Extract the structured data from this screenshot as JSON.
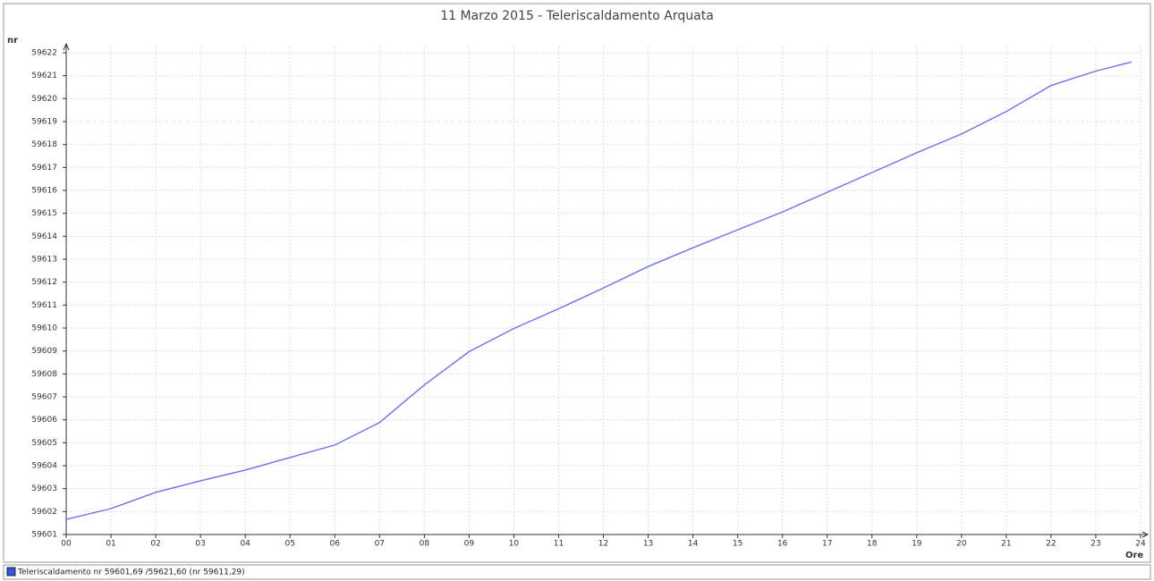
{
  "chart_data": {
    "type": "line",
    "title": "11 Marzo 2015 - Teleriscaldamento Arquata",
    "y_label": "nr",
    "x_label": "Ore",
    "legend_text": "Teleriscaldamento nr 59601,69 /59621,60 (nr 59611,29)",
    "x": [
      0,
      1,
      2,
      3,
      4,
      5,
      6,
      7,
      8,
      9,
      10,
      11,
      12,
      13,
      14,
      15,
      16,
      17,
      18,
      19,
      20,
      21,
      22,
      23,
      23.8
    ],
    "series": [
      {
        "name": "Teleriscaldamento",
        "color": "#6f6ff0",
        "values": [
          59601.66,
          59602.13,
          59602.84,
          59603.34,
          59603.81,
          59604.36,
          59604.9,
          59605.88,
          59607.52,
          59608.97,
          59609.98,
          59610.84,
          59611.74,
          59612.68,
          59613.5,
          59614.28,
          59615.06,
          59615.92,
          59616.78,
          59617.64,
          59618.46,
          59619.44,
          59620.57,
          59621.2,
          59621.6
        ]
      }
    ],
    "xlim": [
      0,
      24
    ],
    "xticks": [
      {
        "value": 0,
        "label": "00"
      },
      {
        "value": 1,
        "label": "01"
      },
      {
        "value": 2,
        "label": "02"
      },
      {
        "value": 3,
        "label": "03"
      },
      {
        "value": 4,
        "label": "04"
      },
      {
        "value": 5,
        "label": "05"
      },
      {
        "value": 6,
        "label": "06"
      },
      {
        "value": 7,
        "label": "07"
      },
      {
        "value": 8,
        "label": "08"
      },
      {
        "value": 9,
        "label": "09"
      },
      10,
      11,
      12,
      13,
      14,
      15,
      16,
      17,
      18,
      19,
      20,
      21,
      22,
      23,
      24
    ],
    "ylim": [
      59601,
      59622
    ],
    "yticks": [
      59601,
      59602,
      59603,
      59604,
      59605,
      59606,
      59607,
      59608,
      59609,
      59610,
      59611,
      59612,
      59613,
      59614,
      59615,
      59616,
      59617,
      59618,
      59619,
      59620,
      59621,
      59622
    ],
    "grid": true
  }
}
